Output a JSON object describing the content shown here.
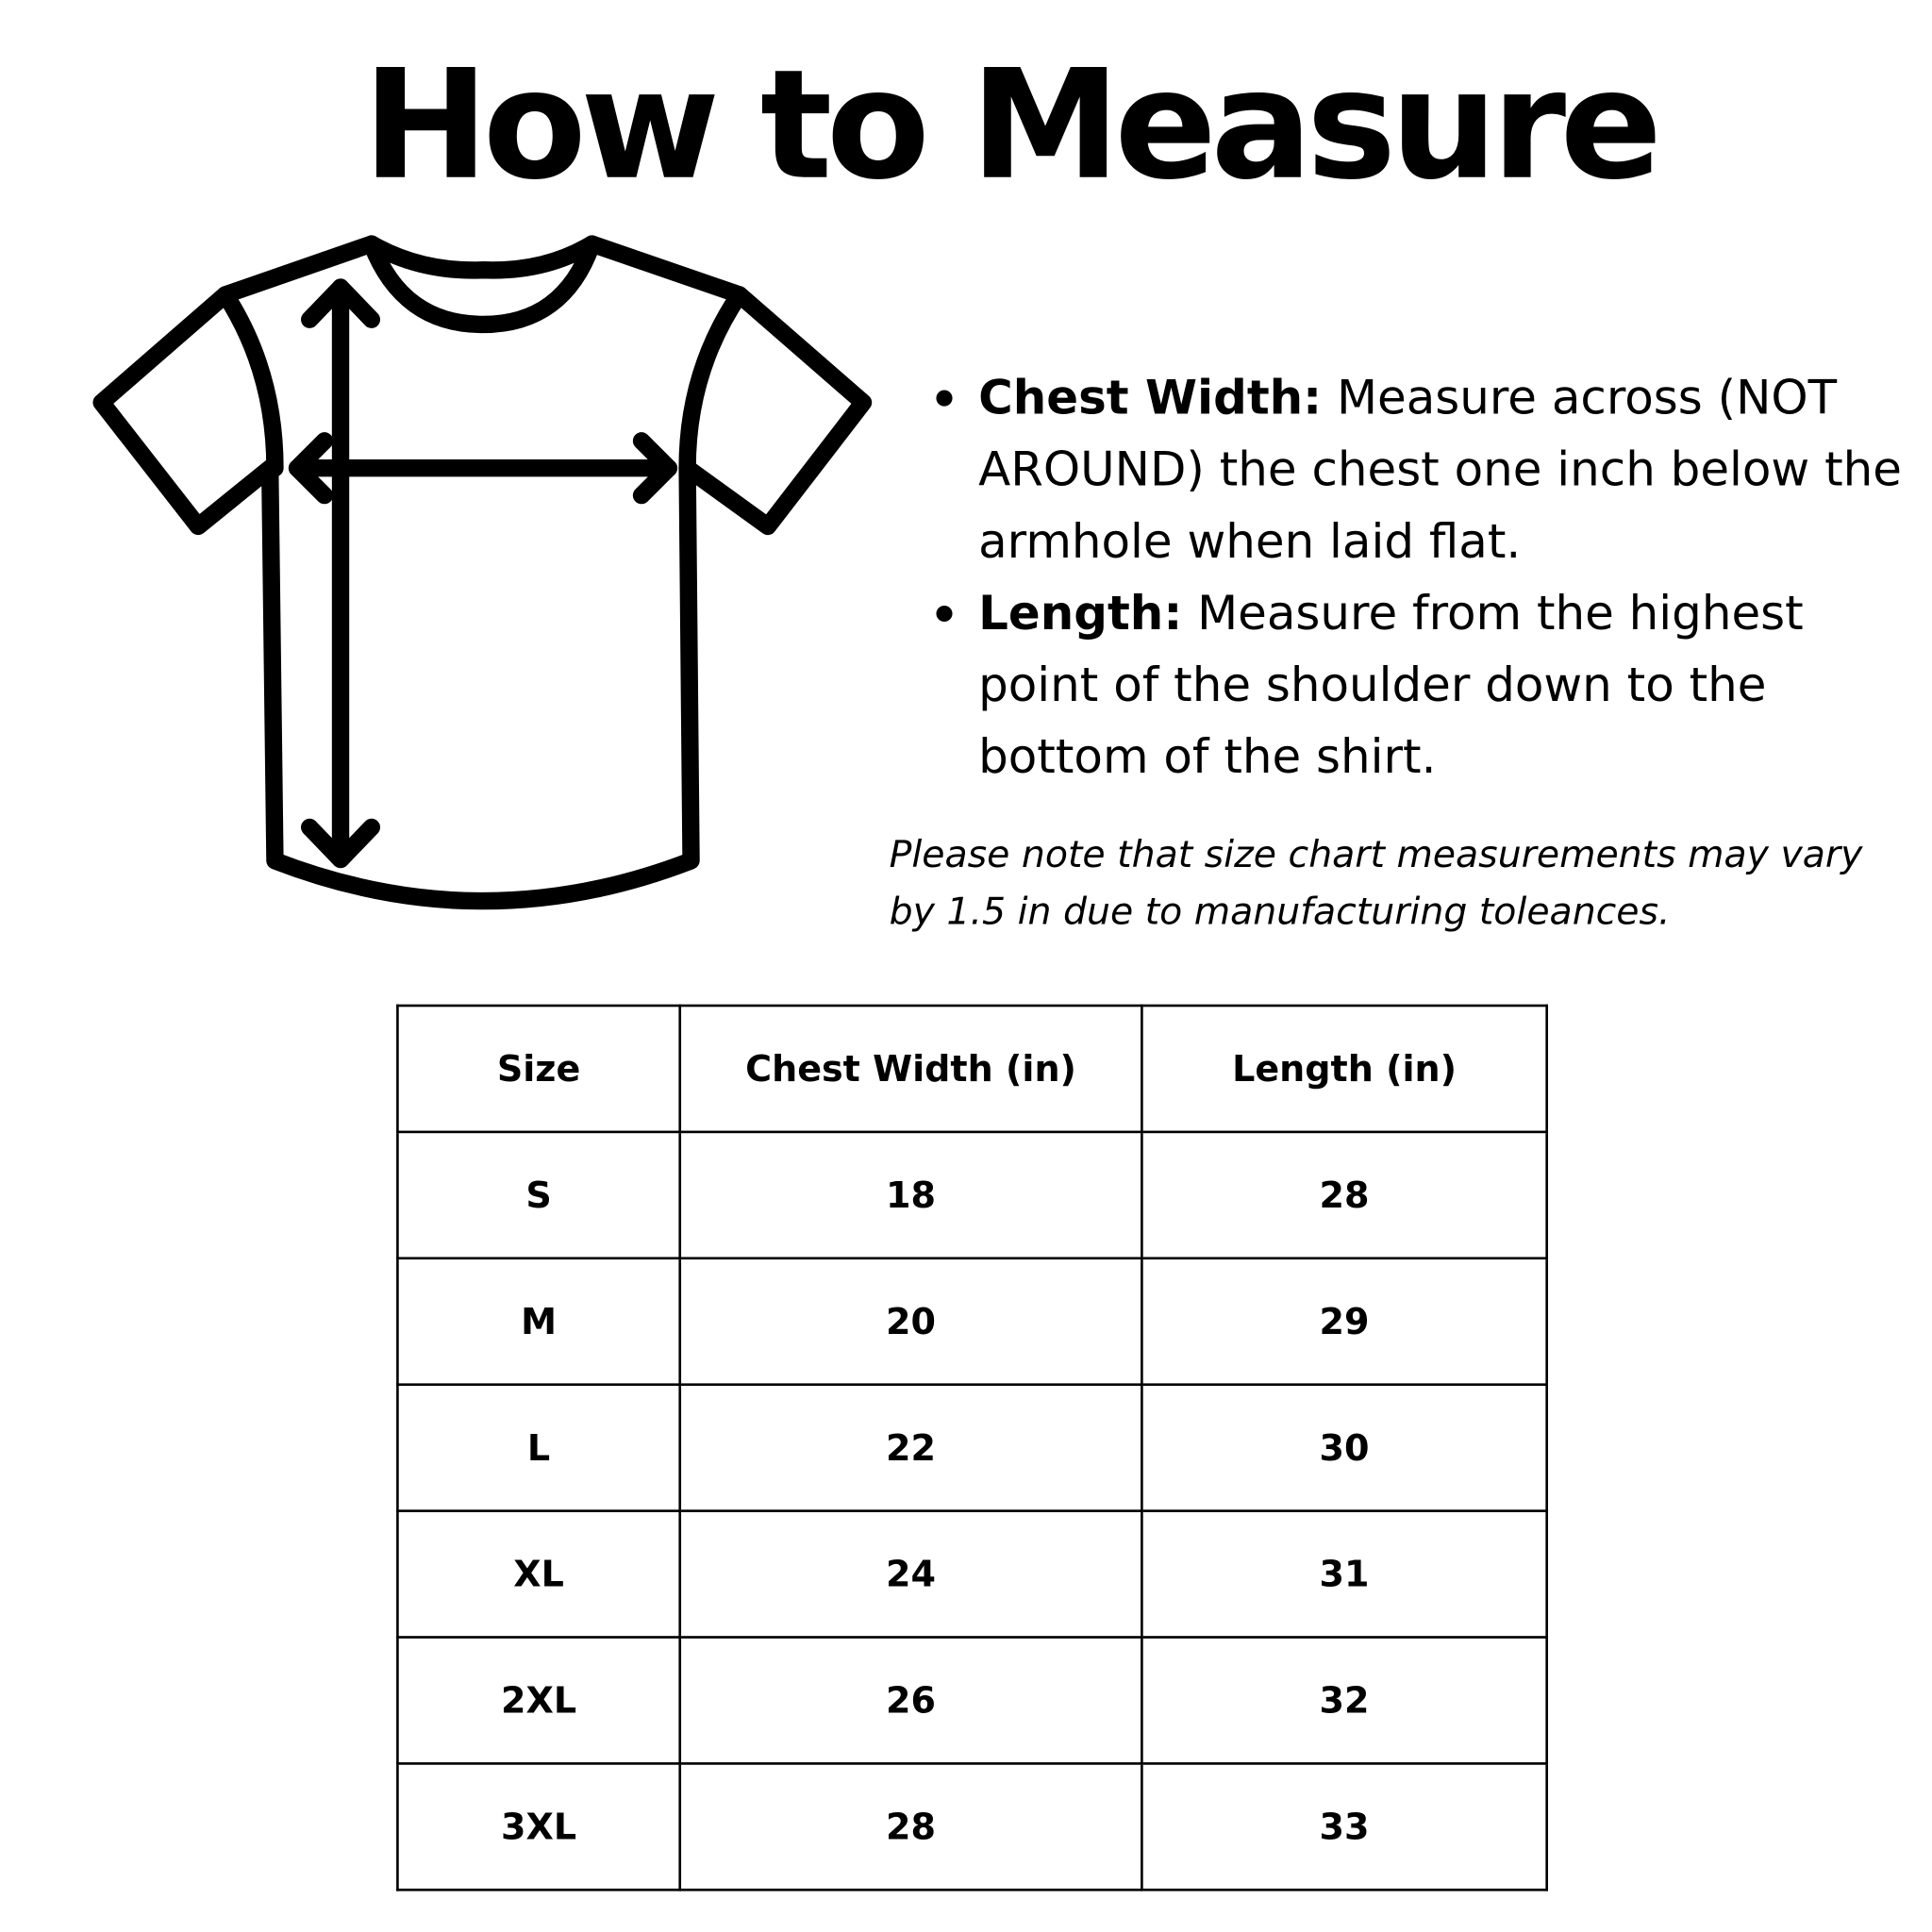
{
  "title": "How to Measure",
  "instructions": [
    {
      "label": "Chest Width:",
      "text": " Measure across (NOT AROUND) the chest one inch below the armhole when laid flat."
    },
    {
      "label": "Length:",
      "text": " Measure from the highest point of the shoulder down to the bottom of the shirt."
    }
  ],
  "note": "Please note that size chart measurements may vary by 1.5 in due to manufacturing toleances.",
  "table": {
    "headers": [
      "Size",
      "Chest Width (in)",
      "Length (in)"
    ],
    "rows": [
      [
        "S",
        "18",
        "28"
      ],
      [
        "M",
        "20",
        "29"
      ],
      [
        "L",
        "22",
        "30"
      ],
      [
        "XL",
        "24",
        "31"
      ],
      [
        "2XL",
        "26",
        "32"
      ],
      [
        "3XL",
        "28",
        "33"
      ]
    ]
  }
}
